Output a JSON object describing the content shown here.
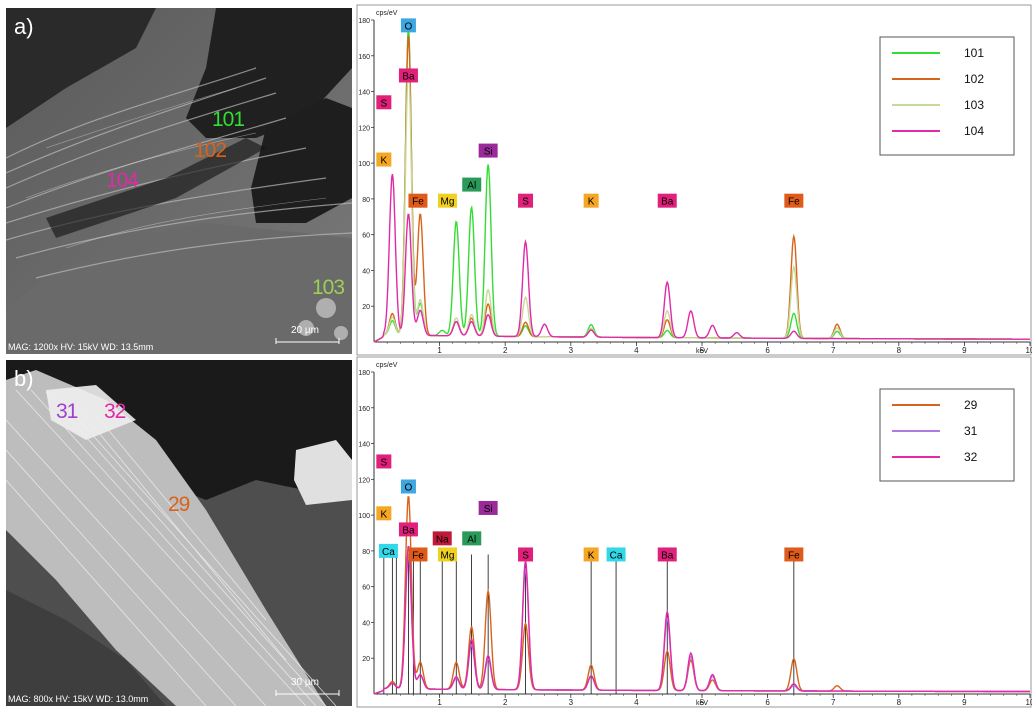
{
  "panels": [
    {
      "id": "a",
      "letter": "a)",
      "sem": {
        "mag_text": "MAG: 1200x HV: 15kV  WD: 13.5mm",
        "scale_bar": "20 µm",
        "spots": [
          {
            "label": "101",
            "color": "#33dd33"
          },
          {
            "label": "102",
            "color": "#d8641a"
          },
          {
            "label": "104",
            "color": "#e02aa8"
          },
          {
            "label": "103",
            "color": "#9ccf56"
          }
        ]
      }
    },
    {
      "id": "b",
      "letter": "b)",
      "sem": {
        "mag_text": "MAG: 800x HV: 15kV  WD: 13.0mm",
        "scale_bar": "30 µm",
        "spots": [
          {
            "label": "31",
            "color": "#a040d0"
          },
          {
            "label": "32",
            "color": "#e02aa8"
          },
          {
            "label": "29",
            "color": "#d8641a"
          }
        ]
      }
    }
  ],
  "chart_data": [
    {
      "type": "line",
      "panel": "a",
      "ylabel": "cps/eV",
      "xlabel": "keV",
      "xlim": [
        0,
        10
      ],
      "ylim": [
        0,
        180
      ],
      "xticks": [
        1,
        2,
        3,
        4,
        5,
        6,
        7,
        8,
        9,
        10
      ],
      "yticks": [
        20,
        40,
        60,
        80,
        100,
        120,
        140,
        160,
        180
      ],
      "legend_position": "top-right",
      "series": [
        {
          "name": "101",
          "color": "#33dd33",
          "baseline": 3,
          "peaks": [
            [
              0.28,
              8
            ],
            [
              0.525,
              172
            ],
            [
              0.705,
              18
            ],
            [
              1.04,
              3
            ],
            [
              1.254,
              64
            ],
            [
              1.487,
              72
            ],
            [
              1.74,
              96
            ],
            [
              2.31,
              6
            ],
            [
              3.31,
              7
            ],
            [
              4.47,
              4
            ],
            [
              6.4,
              14
            ],
            [
              7.06,
              4
            ]
          ]
        },
        {
          "name": "102",
          "color": "#d8641a",
          "baseline": 3,
          "peaks": [
            [
              0.28,
              12
            ],
            [
              0.525,
              168
            ],
            [
              0.705,
              68
            ],
            [
              1.254,
              8
            ],
            [
              1.487,
              10
            ],
            [
              1.74,
              18
            ],
            [
              2.31,
              8
            ],
            [
              3.31,
              4
            ],
            [
              4.47,
              10
            ],
            [
              6.4,
              57
            ],
            [
              7.06,
              8
            ]
          ]
        },
        {
          "name": "103",
          "color": "#c8da9a",
          "baseline": 3,
          "peaks": [
            [
              0.28,
              10
            ],
            [
              0.525,
              150
            ],
            [
              0.705,
              20
            ],
            [
              1.254,
              10
            ],
            [
              1.487,
              12
            ],
            [
              1.74,
              26
            ],
            [
              2.31,
              22
            ],
            [
              3.31,
              5
            ],
            [
              4.47,
              15
            ],
            [
              6.4,
              40
            ],
            [
              7.06,
              6
            ]
          ]
        },
        {
          "name": "104",
          "color": "#e02aa8",
          "baseline": 3,
          "peaks": [
            [
              0.28,
              90
            ],
            [
              0.525,
              68
            ],
            [
              0.705,
              14
            ],
            [
              1.254,
              8
            ],
            [
              1.487,
              8
            ],
            [
              1.74,
              12
            ],
            [
              2.31,
              53
            ],
            [
              2.6,
              7
            ],
            [
              3.31,
              4
            ],
            [
              4.47,
              31
            ],
            [
              4.83,
              15
            ],
            [
              5.16,
              7
            ],
            [
              5.53,
              3
            ],
            [
              6.4,
              4
            ]
          ]
        }
      ],
      "element_labels": [
        {
          "text": "O",
          "kev": 0.525,
          "y": 177,
          "color": "#3fa7e0"
        },
        {
          "text": "Ba",
          "kev": 0.525,
          "y": 149,
          "color": "#e0207a"
        },
        {
          "text": "S",
          "kev": 0.15,
          "y": 134,
          "color": "#e0207a"
        },
        {
          "text": "K",
          "kev": 0.15,
          "y": 102,
          "color": "#f5a623"
        },
        {
          "text": "Si",
          "kev": 1.74,
          "y": 107,
          "color": "#9a2a9a"
        },
        {
          "text": "Al",
          "kev": 1.49,
          "y": 88,
          "color": "#2a9a5a"
        },
        {
          "text": "Fe",
          "kev": 0.67,
          "y": 79,
          "color": "#e05a1a"
        },
        {
          "text": "Mg",
          "kev": 1.12,
          "y": 79,
          "color": "#f0d020"
        },
        {
          "text": "S",
          "kev": 2.31,
          "y": 79,
          "color": "#e0207a"
        },
        {
          "text": "K",
          "kev": 3.31,
          "y": 79,
          "color": "#f5a623"
        },
        {
          "text": "Ba",
          "kev": 4.47,
          "y": 79,
          "color": "#e0207a"
        },
        {
          "text": "Fe",
          "kev": 6.4,
          "y": 79,
          "color": "#e05a1a"
        }
      ],
      "marker_lines": []
    },
    {
      "type": "line",
      "panel": "b",
      "ylabel": "cps/eV",
      "xlabel": "keV",
      "xlim": [
        0,
        10
      ],
      "ylim": [
        0,
        180
      ],
      "xticks": [
        1,
        2,
        3,
        4,
        5,
        6,
        7,
        8,
        9,
        10
      ],
      "yticks": [
        20,
        40,
        60,
        80,
        100,
        120,
        140,
        160,
        180
      ],
      "legend_position": "top-right",
      "series": [
        {
          "name": "29",
          "color": "#d8641a",
          "baseline": 2,
          "peaks": [
            [
              0.28,
              4
            ],
            [
              0.525,
              108
            ],
            [
              0.705,
              15
            ],
            [
              1.254,
              15
            ],
            [
              1.487,
              35
            ],
            [
              1.74,
              55
            ],
            [
              2.31,
              37
            ],
            [
              3.31,
              14
            ],
            [
              4.47,
              22
            ],
            [
              4.83,
              17
            ],
            [
              5.16,
              6
            ],
            [
              6.4,
              18
            ],
            [
              7.06,
              3
            ]
          ]
        },
        {
          "name": "31",
          "color": "#b07ae0",
          "baseline": 2,
          "peaks": [
            [
              0.28,
              3
            ],
            [
              0.525,
              75
            ],
            [
              0.705,
              8
            ],
            [
              1.254,
              6
            ],
            [
              1.487,
              25
            ],
            [
              1.74,
              17
            ],
            [
              2.31,
              68
            ],
            [
              3.31,
              8
            ],
            [
              4.47,
              40
            ],
            [
              4.83,
              19
            ],
            [
              5.16,
              8
            ],
            [
              6.4,
              3
            ]
          ]
        },
        {
          "name": "32",
          "color": "#e02aa8",
          "baseline": 2,
          "peaks": [
            [
              0.28,
              3
            ],
            [
              0.525,
              80
            ],
            [
              0.705,
              8
            ],
            [
              1.254,
              7
            ],
            [
              1.487,
              28
            ],
            [
              1.74,
              19
            ],
            [
              2.31,
              72
            ],
            [
              3.31,
              8
            ],
            [
              4.47,
              44
            ],
            [
              4.83,
              21
            ],
            [
              5.16,
              9
            ],
            [
              6.4,
              4
            ]
          ]
        }
      ],
      "element_labels": [
        {
          "text": "S",
          "kev": 0.15,
          "y": 130,
          "color": "#e0207a"
        },
        {
          "text": "O",
          "kev": 0.525,
          "y": 116,
          "color": "#3fa7e0"
        },
        {
          "text": "K",
          "kev": 0.15,
          "y": 101,
          "color": "#f5a623"
        },
        {
          "text": "Si",
          "kev": 1.74,
          "y": 104,
          "color": "#9a2a9a"
        },
        {
          "text": "Ba",
          "kev": 0.525,
          "y": 92,
          "color": "#e0207a"
        },
        {
          "text": "Na",
          "kev": 1.04,
          "y": 87,
          "color": "#c01a3a"
        },
        {
          "text": "Al",
          "kev": 1.49,
          "y": 87,
          "color": "#2a9a5a"
        },
        {
          "text": "Ca",
          "kev": 0.22,
          "y": 80,
          "color": "#30d8e8"
        },
        {
          "text": "Fe",
          "kev": 0.67,
          "y": 78,
          "color": "#e05a1a"
        },
        {
          "text": "Mg",
          "kev": 1.12,
          "y": 78,
          "color": "#f0d020"
        },
        {
          "text": "S",
          "kev": 2.31,
          "y": 78,
          "color": "#e0207a"
        },
        {
          "text": "K",
          "kev": 3.31,
          "y": 78,
          "color": "#f5a623"
        },
        {
          "text": "Ca",
          "kev": 3.69,
          "y": 78,
          "color": "#30d8e8"
        },
        {
          "text": "Ba",
          "kev": 4.47,
          "y": 78,
          "color": "#e0207a"
        },
        {
          "text": "Fe",
          "kev": 6.4,
          "y": 78,
          "color": "#e05a1a"
        }
      ],
      "marker_lines": [
        0.15,
        0.28,
        0.34,
        0.525,
        0.6,
        0.705,
        1.04,
        1.254,
        1.487,
        1.74,
        2.31,
        3.31,
        3.69,
        4.47,
        6.4
      ]
    }
  ]
}
